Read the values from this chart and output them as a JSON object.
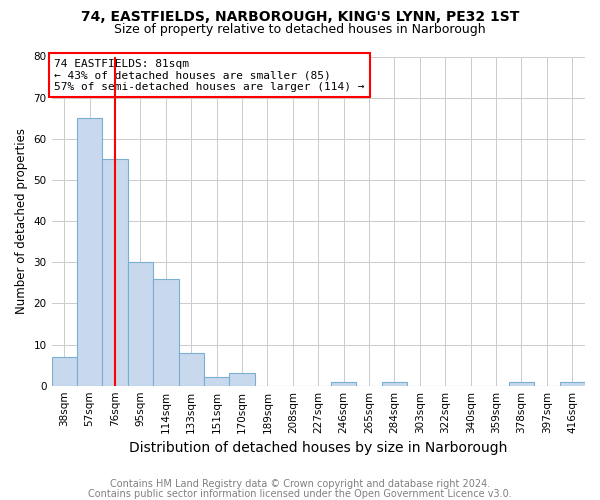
{
  "title_line1": "74, EASTFIELDS, NARBOROUGH, KING'S LYNN, PE32 1ST",
  "title_line2": "Size of property relative to detached houses in Narborough",
  "xlabel": "Distribution of detached houses by size in Narborough",
  "ylabel": "Number of detached properties",
  "footer_line1": "Contains HM Land Registry data © Crown copyright and database right 2024.",
  "footer_line2": "Contains public sector information licensed under the Open Government Licence v3.0.",
  "categories": [
    "38sqm",
    "57sqm",
    "76sqm",
    "95sqm",
    "114sqm",
    "133sqm",
    "151sqm",
    "170sqm",
    "189sqm",
    "208sqm",
    "227sqm",
    "246sqm",
    "265sqm",
    "284sqm",
    "303sqm",
    "322sqm",
    "340sqm",
    "359sqm",
    "378sqm",
    "397sqm",
    "416sqm"
  ],
  "values": [
    7,
    65,
    55,
    30,
    26,
    8,
    2,
    3,
    0,
    0,
    0,
    1,
    0,
    1,
    0,
    0,
    0,
    0,
    1,
    0,
    1
  ],
  "bar_color": "#c8d9ee",
  "bar_edge_color": "#7aafd4",
  "annotation_text_line1": "74 EASTFIELDS: 81sqm",
  "annotation_text_line2": "← 43% of detached houses are smaller (85)",
  "annotation_text_line3": "57% of semi-detached houses are larger (114) →",
  "annotation_box_color": "white",
  "annotation_box_edge_color": "red",
  "vline_color": "red",
  "vline_x": 2.5,
  "ylim": [
    0,
    80
  ],
  "yticks": [
    0,
    10,
    20,
    30,
    40,
    50,
    60,
    70,
    80
  ],
  "grid_color": "#cccccc",
  "bg_color": "white",
  "title_fontsize": 10,
  "subtitle_fontsize": 9,
  "xlabel_fontsize": 10,
  "ylabel_fontsize": 8.5,
  "tick_fontsize": 7.5,
  "annotation_fontsize": 8,
  "footer_fontsize": 7
}
